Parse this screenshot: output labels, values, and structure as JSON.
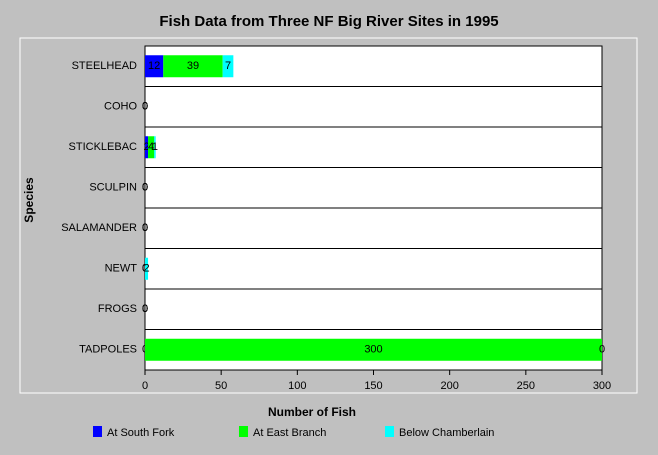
{
  "chart_data": {
    "type": "stacked-barh",
    "title": "Fish Data from Three NF Big River Sites in 1995",
    "xlabel": "Number of Fish",
    "ylabel": "Species",
    "categories": [
      "STEELHEAD",
      "COHO",
      "STICKLEBAC",
      "SCULPIN",
      "SALAMANDER",
      "NEWT",
      "FROGS",
      "TADPOLES"
    ],
    "series": [
      {
        "name": "At South Fork",
        "color": "#0000ff",
        "values": [
          12,
          0,
          2,
          0,
          0,
          0,
          0,
          0
        ]
      },
      {
        "name": "At East Branch",
        "color": "#00ff00",
        "values": [
          39,
          0,
          4,
          0,
          0,
          0,
          0,
          300
        ]
      },
      {
        "name": "Below Chamberlain",
        "color": "#00ffff",
        "values": [
          7,
          0,
          1,
          0,
          0,
          2,
          0,
          0
        ]
      }
    ],
    "xlim": [
      0,
      300
    ],
    "xticks": [
      0,
      50,
      100,
      150,
      200,
      250,
      300
    ]
  }
}
